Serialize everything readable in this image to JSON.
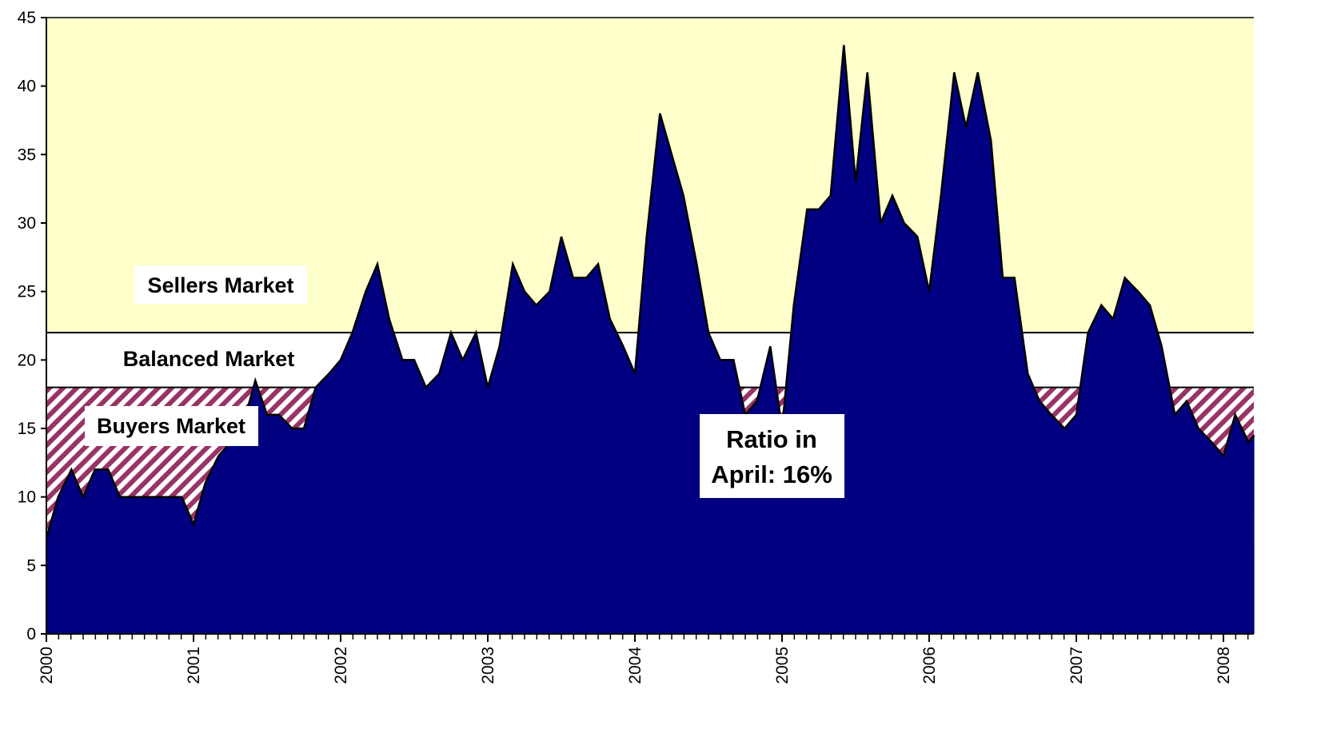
{
  "chart_data": {
    "type": "area",
    "title": "",
    "xlabel": "",
    "ylabel": "",
    "ylim": [
      0,
      45
    ],
    "y_ticks": [
      "0",
      "5",
      "10",
      "15",
      "20",
      "25",
      "30",
      "35",
      "40",
      "45"
    ],
    "x_tick_labels": [
      "2000",
      "2001",
      "2002",
      "2003",
      "2004",
      "2005",
      "2006",
      "2007",
      "2008"
    ],
    "x_range_years": [
      2000,
      2008.21
    ],
    "grid": false,
    "zones": [
      {
        "name": "Sellers Market",
        "from": 22,
        "to": 45,
        "color": "#ffffcc",
        "fill": "solid"
      },
      {
        "name": "Balanced Market",
        "from": 18,
        "to": 22,
        "color": "#ffffff",
        "fill": "solid"
      },
      {
        "name": "Buyers Market",
        "from": 0,
        "to": 18,
        "color": "#993366",
        "fill": "hatched"
      }
    ],
    "zone_label_text": {
      "sellers": "Sellers Market",
      "balanced": "Balanced Market",
      "buyers": "Buyers Market"
    },
    "annotation": {
      "line1": "Ratio in",
      "line2": "April: 16%"
    },
    "series": [
      {
        "color": "#000080",
        "points": [
          [
            2000.0,
            7
          ],
          [
            2000.08,
            10
          ],
          [
            2000.17,
            12
          ],
          [
            2000.25,
            10
          ],
          [
            2000.33,
            12
          ],
          [
            2000.42,
            12
          ],
          [
            2000.5,
            10
          ],
          [
            2000.58,
            10
          ],
          [
            2000.67,
            10
          ],
          [
            2000.75,
            10
          ],
          [
            2000.83,
            10
          ],
          [
            2000.92,
            10
          ],
          [
            2001.0,
            8
          ],
          [
            2001.08,
            11
          ],
          [
            2001.17,
            13
          ],
          [
            2001.25,
            14
          ],
          [
            2001.33,
            15
          ],
          [
            2001.42,
            18.5
          ],
          [
            2001.5,
            16
          ],
          [
            2001.58,
            16
          ],
          [
            2001.67,
            15
          ],
          [
            2001.75,
            15
          ],
          [
            2001.83,
            18
          ],
          [
            2001.92,
            19
          ],
          [
            2002.0,
            20
          ],
          [
            2002.08,
            22
          ],
          [
            2002.17,
            25
          ],
          [
            2002.25,
            27
          ],
          [
            2002.33,
            23
          ],
          [
            2002.42,
            20
          ],
          [
            2002.5,
            20
          ],
          [
            2002.58,
            18
          ],
          [
            2002.67,
            19
          ],
          [
            2002.75,
            22
          ],
          [
            2002.83,
            20
          ],
          [
            2002.92,
            22
          ],
          [
            2003.0,
            18
          ],
          [
            2003.08,
            21
          ],
          [
            2003.17,
            27
          ],
          [
            2003.25,
            25
          ],
          [
            2003.33,
            24
          ],
          [
            2003.42,
            25
          ],
          [
            2003.5,
            29
          ],
          [
            2003.58,
            26
          ],
          [
            2003.67,
            26
          ],
          [
            2003.75,
            27
          ],
          [
            2003.83,
            23
          ],
          [
            2003.92,
            21
          ],
          [
            2004.0,
            19
          ],
          [
            2004.08,
            29
          ],
          [
            2004.17,
            38
          ],
          [
            2004.25,
            35
          ],
          [
            2004.33,
            32
          ],
          [
            2004.42,
            27
          ],
          [
            2004.5,
            22
          ],
          [
            2004.58,
            20
          ],
          [
            2004.67,
            20
          ],
          [
            2004.75,
            16
          ],
          [
            2004.83,
            17
          ],
          [
            2004.92,
            21
          ],
          [
            2005.0,
            15
          ],
          [
            2005.08,
            24
          ],
          [
            2005.17,
            31
          ],
          [
            2005.25,
            31
          ],
          [
            2005.33,
            32
          ],
          [
            2005.42,
            43
          ],
          [
            2005.5,
            33
          ],
          [
            2005.58,
            41
          ],
          [
            2005.67,
            30
          ],
          [
            2005.75,
            32
          ],
          [
            2005.83,
            30
          ],
          [
            2005.92,
            29
          ],
          [
            2006.0,
            25
          ],
          [
            2006.08,
            32
          ],
          [
            2006.17,
            41
          ],
          [
            2006.25,
            37
          ],
          [
            2006.33,
            41
          ],
          [
            2006.42,
            36
          ],
          [
            2006.5,
            26
          ],
          [
            2006.58,
            26
          ],
          [
            2006.67,
            19
          ],
          [
            2006.75,
            17
          ],
          [
            2006.83,
            16
          ],
          [
            2006.92,
            15
          ],
          [
            2007.0,
            16
          ],
          [
            2007.08,
            22
          ],
          [
            2007.17,
            24
          ],
          [
            2007.25,
            23
          ],
          [
            2007.33,
            26
          ],
          [
            2007.42,
            25
          ],
          [
            2007.5,
            24
          ],
          [
            2007.58,
            21
          ],
          [
            2007.67,
            16
          ],
          [
            2007.75,
            17
          ],
          [
            2007.83,
            15
          ],
          [
            2007.92,
            14
          ],
          [
            2008.0,
            13
          ],
          [
            2008.08,
            16
          ],
          [
            2008.17,
            14
          ],
          [
            2008.21,
            14.5
          ]
        ]
      }
    ]
  }
}
